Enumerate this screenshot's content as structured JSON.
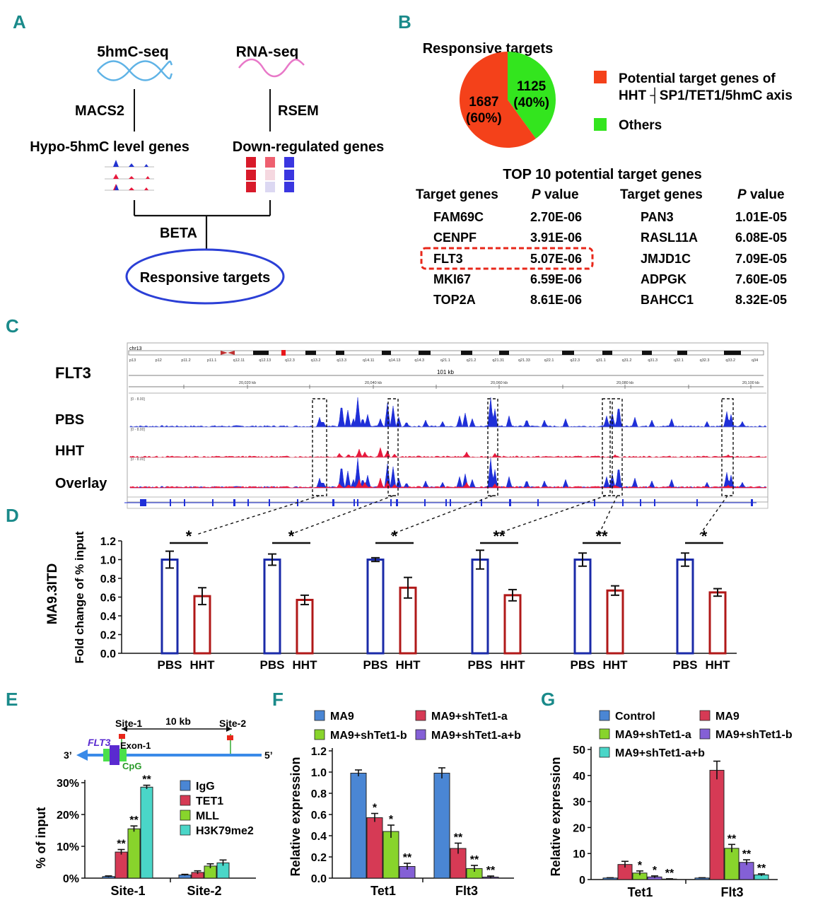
{
  "panels": {
    "A": "A",
    "B": "B",
    "C": "C",
    "D": "D",
    "E": "E",
    "F": "F",
    "G": "G"
  },
  "panelA": {
    "seq1": "5hmC-seq",
    "seq2": "RNA-seq",
    "tool1": "MACS2",
    "tool2": "RSEM",
    "genes1": "Hypo-5hmC level genes",
    "genes2": "Down-regulated genes",
    "tool3": "BETA",
    "result": "Responsive targets",
    "colors": {
      "dna": "#5fb3e6",
      "rna": "#e878c8",
      "ellipse": "#2b3fd6"
    }
  },
  "panelB": {
    "title": "Responsive targets",
    "legend1_line1": "Potential target genes of",
    "legend1_line2": "HHT ┤SP1/TET1/5hmC axis",
    "legend2": "Others",
    "table_title": "TOP 10 potential target genes",
    "headers": {
      "gene": "Target genes",
      "p_letter": "P",
      "p_rest": " value"
    },
    "left_rows": [
      {
        "gene": "FAM69C",
        "p": "2.70E-06"
      },
      {
        "gene": "CENPF",
        "p": "3.91E-06"
      },
      {
        "gene": "FLT3",
        "p": "5.07E-06"
      },
      {
        "gene": "MKI67",
        "p": "6.59E-06"
      },
      {
        "gene": "TOP2A",
        "p": "8.61E-06"
      }
    ],
    "right_rows": [
      {
        "gene": "PAN3",
        "p": "1.01E-05"
      },
      {
        "gene": "RASL11A",
        "p": "6.08E-05"
      },
      {
        "gene": "JMJD1C",
        "p": "7.09E-05"
      },
      {
        "gene": "ADPGK",
        "p": "7.60E-05"
      },
      {
        "gene": "BAHCC1",
        "p": "8.32E-05"
      }
    ]
  },
  "panelC": {
    "gene": "FLT3",
    "chrom": "chr13",
    "bands": [
      "p13",
      "p12",
      "p11.2",
      "p11.1",
      "q12.11",
      "q12.13",
      "q12.3",
      "q13.2",
      "q13.3",
      "q14.11",
      "q14.13",
      "q14.3",
      "q21.1",
      "q21.2",
      "q21.31",
      "q21.33",
      "q22.1",
      "q22.3",
      "q31.1",
      "q31.2",
      "q31.3",
      "q32.1",
      "q32.3",
      "q33.2",
      "q34"
    ],
    "span": "101 kb",
    "coords": [
      "20,020 kb",
      "20,040 kb",
      "20,060 kb",
      "20,080 kb",
      "20,100 kb"
    ],
    "range_label": "[0 - 8.00]",
    "tracks": [
      "PBS",
      "HHT",
      "Overlay"
    ],
    "colors": {
      "pbs": "#1f2fd8",
      "hht": "#e8183c"
    }
  },
  "panelD": {
    "ylabel_cell": "MA9.3ITD",
    "ylabel": "Fold change of % input"
  },
  "panelE": {
    "site1": "Site-1",
    "site2": "Site-2",
    "dist": "10 kb",
    "gene": "FLT3",
    "exon": "Exon-1",
    "cpg": "CpG",
    "end3": "3’",
    "end5": "5’",
    "ylabel": "% of input"
  },
  "panelF": {
    "ylabel": "Relative expression"
  },
  "panelG": {
    "ylabel": "Relative expression"
  },
  "chart_data": [
    {
      "id": "B",
      "type": "pie",
      "title": "Responsive targets",
      "slices": [
        {
          "name": "Potential target genes of HHT ┤SP1/TET1/5hmC axis",
          "value": 1687,
          "pct": "(60%)",
          "color": "#f4411a"
        },
        {
          "name": "Others",
          "value": 1125,
          "pct": "(40%)",
          "color": "#33e51e"
        }
      ]
    },
    {
      "id": "D",
      "type": "bar",
      "ylabel": "Fold change of % input",
      "ylim": [
        0,
        1.2
      ],
      "yticks": [
        0.0,
        0.2,
        0.4,
        0.6,
        0.8,
        1.0,
        1.2
      ],
      "tick_labels": [
        "0.0",
        "0.2",
        "0.4",
        "0.6",
        "0.8",
        "1.0",
        "1.2"
      ],
      "categories": [
        "PBS",
        "HHT"
      ],
      "groups": [
        {
          "pbs": 1.0,
          "pbs_err": 0.09,
          "hht": 0.61,
          "hht_err": 0.09,
          "sig": "*"
        },
        {
          "pbs": 1.0,
          "pbs_err": 0.06,
          "hht": 0.57,
          "hht_err": 0.05,
          "sig": "*"
        },
        {
          "pbs": 1.0,
          "pbs_err": 0.02,
          "hht": 0.7,
          "hht_err": 0.11,
          "sig": "*"
        },
        {
          "pbs": 1.0,
          "pbs_err": 0.1,
          "hht": 0.62,
          "hht_err": 0.06,
          "sig": "**"
        },
        {
          "pbs": 1.0,
          "pbs_err": 0.07,
          "hht": 0.67,
          "hht_err": 0.05,
          "sig": "**"
        },
        {
          "pbs": 1.0,
          "pbs_err": 0.07,
          "hht": 0.65,
          "hht_err": 0.04,
          "sig": "*"
        }
      ],
      "colors": {
        "PBS": "#1a2aa8",
        "HHT": "#b01818"
      }
    },
    {
      "id": "E",
      "type": "bar",
      "ylabel": "% of input",
      "ylim": [
        0,
        30
      ],
      "yticks": [
        0,
        10,
        20,
        30
      ],
      "tick_labels": [
        "0%",
        "10%",
        "20%",
        "30%"
      ],
      "categories": [
        "Site-1",
        "Site-2"
      ],
      "series": [
        {
          "name": "IgG",
          "color": "#4a86d4",
          "values": [
            0.5,
            1.0
          ],
          "err": [
            0.2,
            0.2
          ],
          "sig": [
            "",
            ""
          ]
        },
        {
          "name": "TET1",
          "color": "#d63a55",
          "values": [
            8.2,
            1.8
          ],
          "err": [
            0.8,
            0.5
          ],
          "sig": [
            "**",
            ""
          ]
        },
        {
          "name": "MLL",
          "color": "#88d42c",
          "values": [
            15.5,
            3.8
          ],
          "err": [
            0.9,
            0.7
          ],
          "sig": [
            "**",
            ""
          ]
        },
        {
          "name": "H3K79me2",
          "color": "#4ad6c8",
          "values": [
            28.6,
            4.8
          ],
          "err": [
            0.6,
            0.9
          ],
          "sig": [
            "**",
            ""
          ]
        }
      ]
    },
    {
      "id": "F",
      "type": "bar",
      "ylabel": "Relative expression",
      "ylim": [
        0,
        1.2
      ],
      "yticks": [
        0.0,
        0.2,
        0.4,
        0.6,
        0.8,
        1.0,
        1.2
      ],
      "tick_labels": [
        "0.0",
        "0.2",
        "0.4",
        "0.6",
        "0.8",
        "1.0",
        "1.2"
      ],
      "categories": [
        "Tet1",
        "Flt3"
      ],
      "legend_order": [
        0,
        1,
        2,
        3
      ],
      "series": [
        {
          "name": "MA9",
          "color": "#4a86d4",
          "values": [
            0.99,
            0.99
          ],
          "err": [
            0.03,
            0.05
          ],
          "sig": [
            "",
            ""
          ]
        },
        {
          "name": "MA9+shTet1-a",
          "color": "#d63a55",
          "values": [
            0.57,
            0.28
          ],
          "err": [
            0.04,
            0.05
          ],
          "sig": [
            "*",
            "**"
          ]
        },
        {
          "name": "MA9+shTet1-b",
          "color": "#88d42c",
          "values": [
            0.44,
            0.09
          ],
          "err": [
            0.06,
            0.03
          ],
          "sig": [
            "*",
            "**"
          ]
        },
        {
          "name": "MA9+shTet1-a+b",
          "color": "#8460d6",
          "values": [
            0.11,
            0.01
          ],
          "err": [
            0.03,
            0.01
          ],
          "sig": [
            "**",
            "**"
          ]
        }
      ]
    },
    {
      "id": "G",
      "type": "bar",
      "ylabel": "Relative expression",
      "ylim": [
        0,
        50
      ],
      "yticks": [
        0,
        10,
        20,
        30,
        40,
        50
      ],
      "tick_labels": [
        "0",
        "10",
        "20",
        "30",
        "40",
        "50"
      ],
      "categories": [
        "Tet1",
        "Flt3"
      ],
      "series": [
        {
          "name": "Control",
          "color": "#4a86d4",
          "values": [
            0.6,
            0.6
          ],
          "err": [
            0.1,
            0.1
          ],
          "sig": [
            "",
            ""
          ]
        },
        {
          "name": "MA9",
          "color": "#d63a55",
          "values": [
            5.8,
            42.0
          ],
          "err": [
            1.2,
            3.5
          ],
          "sig": [
            "",
            ""
          ]
        },
        {
          "name": "MA9+shTet1-a",
          "color": "#88d42c",
          "values": [
            2.5,
            12.0
          ],
          "err": [
            0.8,
            1.5
          ],
          "sig": [
            "*",
            "**"
          ]
        },
        {
          "name": "MA9+shTet1-b",
          "color": "#8460d6",
          "values": [
            1.0,
            6.6
          ],
          "err": [
            0.4,
            1.0
          ],
          "sig": [
            "*",
            "**"
          ]
        },
        {
          "name": "MA9+shTet1-a+b",
          "color": "#4ad6c8",
          "values": [
            0.2,
            1.8
          ],
          "err": [
            0.1,
            0.4
          ],
          "sig": [
            "**",
            "**"
          ]
        }
      ]
    }
  ]
}
